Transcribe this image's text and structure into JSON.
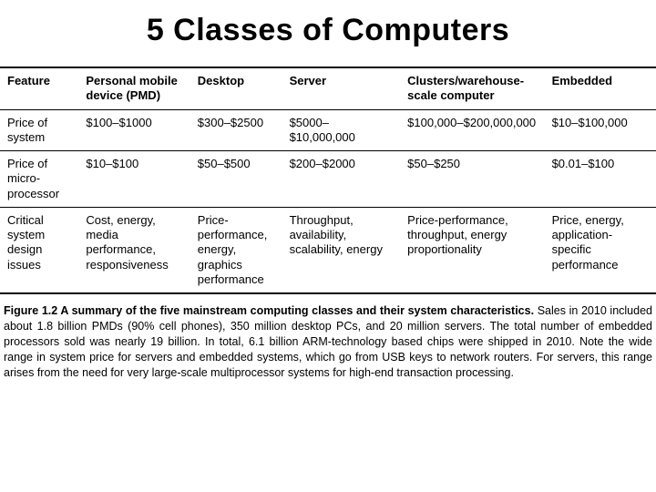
{
  "title": "5 Classes of Computers",
  "table": {
    "type": "table",
    "background_color": "#ffffff",
    "border_color": "#000000",
    "header_fontsize": 13,
    "cell_fontsize": 13,
    "header_fontweight": "bold",
    "columns": [
      "Feature",
      "Personal mobile device (PMD)",
      "Desktop",
      "Server",
      "Clusters/warehouse-scale computer",
      "Embedded"
    ],
    "col_widths_pct": [
      12,
      17,
      14,
      18,
      22,
      17
    ],
    "rows": [
      {
        "feature": "Price of system",
        "pmd": "$100–$1000",
        "desktop": "$300–$2500",
        "server": "$5000–$10,000,000",
        "clusters": "$100,000–$200,000,000",
        "embedded": "$10–$100,000"
      },
      {
        "feature": "Price of micro-processor",
        "pmd": "$10–$100",
        "desktop": "$50–$500",
        "server": "$200–$2000",
        "clusters": "$50–$250",
        "embedded": "$0.01–$100"
      },
      {
        "feature": "Critical system design issues",
        "pmd": "Cost, energy, media performance, responsiveness",
        "desktop": "Price-performance, energy, graphics performance",
        "server": "Throughput, availability, scalability, energy",
        "clusters": "Price-performance, throughput, energy proportionality",
        "embedded": "Price, energy, application-specific performance"
      }
    ]
  },
  "caption": {
    "lead": "Figure 1.2  A summary of the five mainstream computing classes and their system characteristics.",
    "body": " Sales in 2010 included about 1.8 billion PMDs (90% cell phones), 350 million desktop PCs, and 20 million servers. The total number of embedded processors sold was nearly 19 billion. In total, 6.1 billion ARM-technology based chips were shipped in 2010. Note the wide range in system price for servers and embedded systems, which go from USB keys to network routers. For servers, this range arises from the need for very large-scale multiprocessor systems for high-end transaction processing.",
    "fontsize": 12.5
  }
}
